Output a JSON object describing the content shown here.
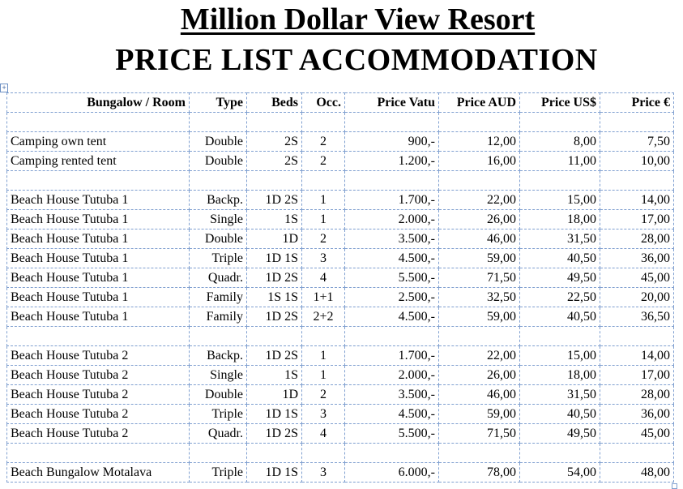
{
  "title": "Million Dollar View Resort",
  "subtitle": "PRICE LIST ACCOMMODATION",
  "table_anchor_glyph": "+",
  "columns": [
    "Bungalow / Room",
    "Type",
    "Beds",
    "Occ.",
    "Price Vatu",
    "Price AUD",
    "Price US$",
    "Price €"
  ],
  "groups": [
    {
      "rows": [
        {
          "name": "Camping own tent",
          "type": "Double",
          "beds": "2S",
          "occ": "2",
          "vatu": "900,-",
          "aud": "12,00",
          "usd": "8,00",
          "eur": "7,50"
        },
        {
          "name": "Camping rented tent",
          "type": "Double",
          "beds": "2S",
          "occ": "2",
          "vatu": "1.200,-",
          "aud": "16,00",
          "usd": "11,00",
          "eur": "10,00"
        }
      ]
    },
    {
      "rows": [
        {
          "name": "Beach House Tutuba 1",
          "type": "Backp.",
          "beds": "1D 2S",
          "occ": "1",
          "vatu": "1.700,-",
          "aud": "22,00",
          "usd": "15,00",
          "eur": "14,00"
        },
        {
          "name": "Beach House Tutuba 1",
          "type": "Single",
          "beds": "1S",
          "occ": "1",
          "vatu": "2.000,-",
          "aud": "26,00",
          "usd": "18,00",
          "eur": "17,00"
        },
        {
          "name": "Beach House Tutuba 1",
          "type": "Double",
          "beds": "1D",
          "occ": "2",
          "vatu": "3.500,-",
          "aud": "46,00",
          "usd": "31,50",
          "eur": "28,00"
        },
        {
          "name": "Beach House Tutuba 1",
          "type": "Triple",
          "beds": "1D 1S",
          "occ": "3",
          "vatu": "4.500,-",
          "aud": "59,00",
          "usd": "40,50",
          "eur": "36,00"
        },
        {
          "name": "Beach House Tutuba 1",
          "type": "Quadr.",
          "beds": "1D 2S",
          "occ": "4",
          "vatu": "5.500,-",
          "aud": "71,50",
          "usd": "49,50",
          "eur": "45,00"
        },
        {
          "name": "Beach House Tutuba 1",
          "type": "Family",
          "beds": "1S 1S",
          "occ": "1+1",
          "vatu": "2.500,-",
          "aud": "32,50",
          "usd": "22,50",
          "eur": "20,00"
        },
        {
          "name": "Beach House Tutuba 1",
          "type": "Family",
          "beds": "1D 2S",
          "occ": "2+2",
          "vatu": "4.500,-",
          "aud": "59,00",
          "usd": "40,50",
          "eur": "36,50"
        }
      ]
    },
    {
      "rows": [
        {
          "name": "Beach House Tutuba 2",
          "type": "Backp.",
          "beds": "1D 2S",
          "occ": "1",
          "vatu": "1.700,-",
          "aud": "22,00",
          "usd": "15,00",
          "eur": "14,00"
        },
        {
          "name": "Beach House Tutuba 2",
          "type": "Single",
          "beds": "1S",
          "occ": "1",
          "vatu": "2.000,-",
          "aud": "26,00",
          "usd": "18,00",
          "eur": "17,00"
        },
        {
          "name": "Beach House Tutuba 2",
          "type": "Double",
          "beds": "1D",
          "occ": "2",
          "vatu": "3.500,-",
          "aud": "46,00",
          "usd": "31,50",
          "eur": "28,00"
        },
        {
          "name": "Beach House Tutuba 2",
          "type": "Triple",
          "beds": "1D 1S",
          "occ": "3",
          "vatu": "4.500,-",
          "aud": "59,00",
          "usd": "40,50",
          "eur": "36,00"
        },
        {
          "name": "Beach House Tutuba 2",
          "type": "Quadr.",
          "beds": "1D 2S",
          "occ": "4",
          "vatu": "5.500,-",
          "aud": "71,50",
          "usd": "49,50",
          "eur": "45,00"
        }
      ]
    },
    {
      "rows": [
        {
          "name": "Beach Bungalow Motalava",
          "type": "Triple",
          "beds": "1D 1S",
          "occ": "3",
          "vatu": "6.000,-",
          "aud": "78,00",
          "usd": "54,00",
          "eur": "48,00"
        }
      ]
    }
  ]
}
